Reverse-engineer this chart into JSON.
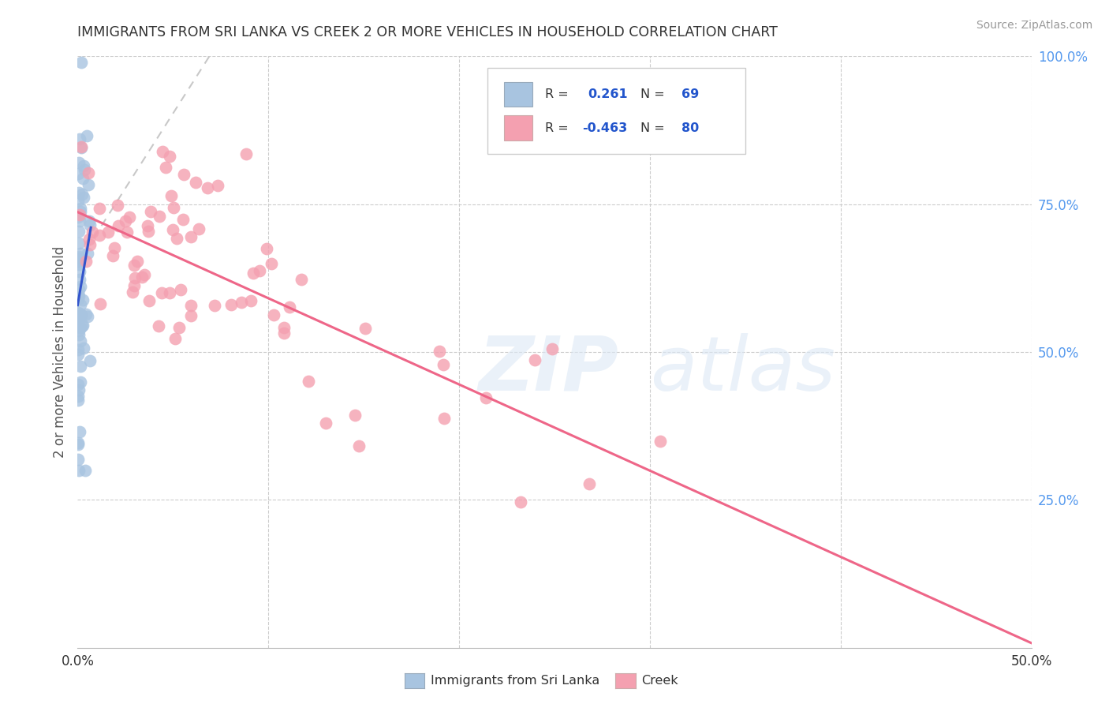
{
  "title": "IMMIGRANTS FROM SRI LANKA VS CREEK 2 OR MORE VEHICLES IN HOUSEHOLD CORRELATION CHART",
  "source": "Source: ZipAtlas.com",
  "ylabel": "2 or more Vehicles in Household",
  "x_min": 0.0,
  "x_max": 0.5,
  "y_min": 0.0,
  "y_max": 1.0,
  "sri_lanka_color": "#a8c4e0",
  "creek_color": "#f4a0b0",
  "sri_lanka_line_color": "#3355cc",
  "creek_line_color": "#ee6688",
  "dashed_line_color": "#c8c8c8",
  "legend_R_sri_lanka": "0.261",
  "legend_N_sri_lanka": "69",
  "legend_R_creek": "-0.463",
  "legend_N_creek": "80",
  "sri_lanka_seed": 42,
  "creek_seed": 7
}
